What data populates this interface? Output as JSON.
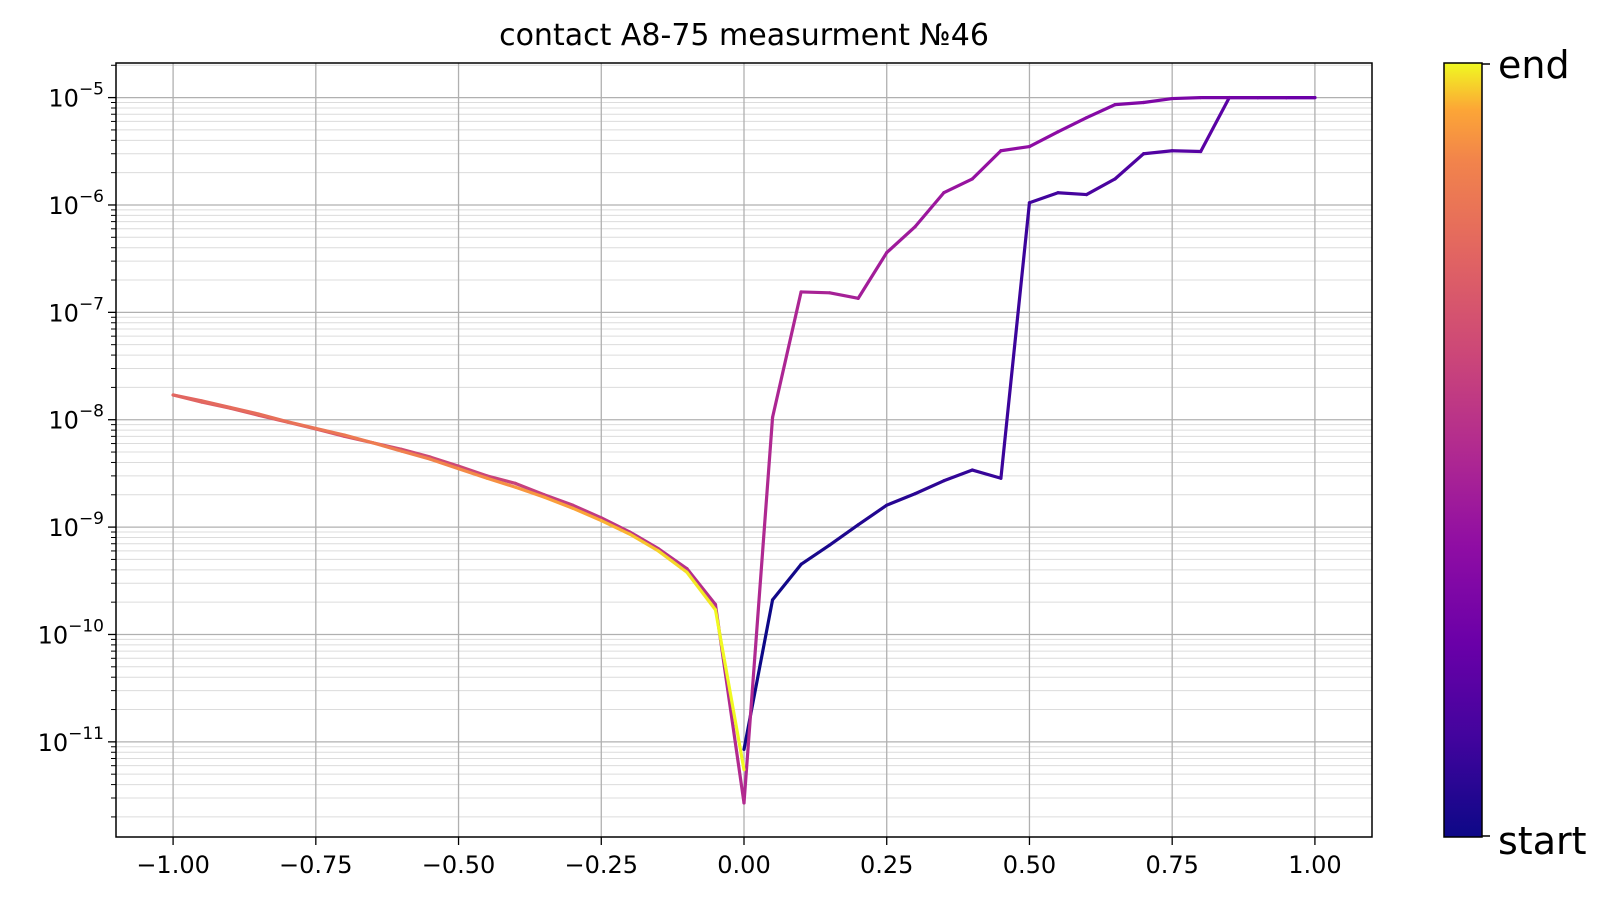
{
  "chart_data": {
    "type": "line",
    "title": "contact A8-75 measurment №46",
    "xlabel": "",
    "ylabel": "",
    "xlim": [
      -1.1,
      1.1
    ],
    "ylim": [
      1.3e-12,
      2.1e-05
    ],
    "y_scale": "log",
    "grid": true,
    "x_ticks": [
      -1.0,
      -0.75,
      -0.5,
      -0.25,
      0.0,
      0.25,
      0.5,
      0.75,
      1.0
    ],
    "x_tick_labels": [
      "−1.00",
      "−0.75",
      "−0.50",
      "−0.25",
      "0.00",
      "0.25",
      "0.50",
      "0.75",
      "1.00"
    ],
    "y_ticks": [
      {
        "value": 1e-05,
        "mant": "10",
        "exp": "−5"
      },
      {
        "value": 1e-06,
        "mant": "10",
        "exp": "−6"
      },
      {
        "value": 1e-07,
        "mant": "10",
        "exp": "−7"
      },
      {
        "value": 1e-08,
        "mant": "10",
        "exp": "−8"
      },
      {
        "value": 1e-09,
        "mant": "10",
        "exp": "−9"
      },
      {
        "value": 1e-10,
        "mant": "10",
        "exp": "−10"
      },
      {
        "value": 1e-11,
        "mant": "10",
        "exp": "−11"
      }
    ],
    "colormap": "plasma",
    "colorbar": {
      "top_label": "end",
      "bottom_label": "start"
    },
    "x": [
      0.0,
      0.05,
      0.1,
      0.15,
      0.2,
      0.25,
      0.3,
      0.35,
      0.4,
      0.45,
      0.5,
      0.55,
      0.6,
      0.65,
      0.7,
      0.75,
      0.8,
      0.85,
      0.9,
      0.95,
      1.0,
      0.95,
      0.9,
      0.85,
      0.8,
      0.75,
      0.7,
      0.65,
      0.6,
      0.55,
      0.5,
      0.45,
      0.4,
      0.35,
      0.3,
      0.25,
      0.2,
      0.15,
      0.1,
      0.05,
      0.0,
      -0.05,
      -0.1,
      -0.15,
      -0.2,
      -0.25,
      -0.3,
      -0.35,
      -0.4,
      -0.45,
      -0.5,
      -0.55,
      -0.6,
      -0.65,
      -0.7,
      -0.75,
      -0.8,
      -0.85,
      -0.9,
      -0.95,
      -1.0,
      -0.95,
      -0.9,
      -0.85,
      -0.8,
      -0.75,
      -0.7,
      -0.65,
      -0.6,
      -0.55,
      -0.5,
      -0.45,
      -0.4,
      -0.35,
      -0.3,
      -0.25,
      -0.2,
      -0.15,
      -0.1,
      -0.05,
      0.0
    ],
    "y": [
      8.5e-12,
      2.1e-10,
      4.5e-10,
      6.8e-10,
      1.05e-09,
      1.6e-09,
      2.05e-09,
      2.7e-09,
      3.4e-09,
      2.85e-09,
      1.05e-06,
      1.3e-06,
      1.25e-06,
      1.75e-06,
      3e-06,
      3.2e-06,
      3.15e-06,
      1e-05,
      1e-05,
      1e-05,
      1e-05,
      1e-05,
      1e-05,
      1e-05,
      1e-05,
      9.8e-06,
      9e-06,
      8.6e-06,
      6.5e-06,
      4.8e-06,
      3.5e-06,
      3.2e-06,
      1.75e-06,
      1.3e-06,
      6.3e-07,
      3.6e-07,
      1.35e-07,
      1.52e-07,
      1.55e-07,
      1.05e-08,
      2.7e-12,
      1.9e-10,
      4.1e-10,
      6.3e-10,
      9e-10,
      1.22e-09,
      1.6e-09,
      2e-09,
      2.55e-09,
      3e-09,
      3.7e-09,
      4.5e-09,
      5.3e-09,
      6.1e-09,
      7e-09,
      8.2e-09,
      9.5e-09,
      1.1e-08,
      1.28e-08,
      1.46e-08,
      1.7e-08,
      1.5e-08,
      1.3e-08,
      1.13e-08,
      9.6e-09,
      8.3e-09,
      7.2e-09,
      6.1e-09,
      5.1e-09,
      4.3e-09,
      3.5e-09,
      2.85e-09,
      2.35e-09,
      1.9e-09,
      1.5e-09,
      1.15e-09,
      8.6e-10,
      6e-10,
      3.8e-10,
      1.7e-10,
      5.5e-12
    ]
  }
}
